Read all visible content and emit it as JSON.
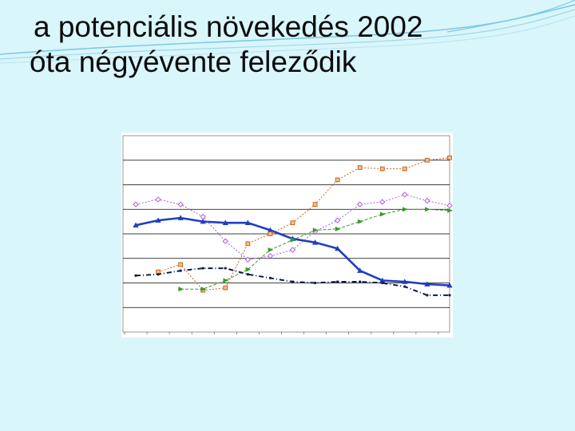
{
  "slide": {
    "title_line1": "a potenciális növekedés 2002",
    "title_line2": "óta  négyévente  feleződik"
  },
  "colors": {
    "background": "#d9f6fb",
    "decor_lines": "#7fc9e3",
    "plot_bg": "#ffffff",
    "grid": "#000000"
  },
  "chart_data": {
    "type": "line",
    "title": "",
    "xlabel": "",
    "ylabel": "",
    "x": [
      1,
      2,
      3,
      4,
      5,
      6,
      7,
      8,
      9,
      10,
      11,
      12,
      13,
      14,
      15
    ],
    "ylim": [
      0,
      8
    ],
    "grid": true,
    "legend": "none",
    "series": [
      {
        "color": "#1f3fbf",
        "marker": "triangle",
        "dash": "solid",
        "width": 2.6,
        "values": [
          4.35,
          4.55,
          4.65,
          4.5,
          4.45,
          4.45,
          4.15,
          3.8,
          3.65,
          3.4,
          2.5,
          2.1,
          2.05,
          1.95,
          1.9
        ]
      },
      {
        "color": "#c8641e",
        "marker": "square",
        "dash": "2 2",
        "width": 1,
        "values": [
          null,
          2.45,
          2.75,
          1.7,
          1.8,
          3.6,
          4.0,
          4.45,
          5.2,
          6.2,
          6.7,
          6.65,
          6.65,
          7.0,
          7.1
        ]
      },
      {
        "color": "#b05ce0",
        "marker": "diamond",
        "dash": "2 2",
        "width": 1,
        "values": [
          5.2,
          5.4,
          5.2,
          4.7,
          3.7,
          2.95,
          3.1,
          3.35,
          4.1,
          4.55,
          5.2,
          5.3,
          5.6,
          5.35,
          5.15
        ]
      },
      {
        "color": "#3a9a2a",
        "marker": "triangle-right",
        "dash": "4 2",
        "width": 1,
        "values": [
          null,
          null,
          1.75,
          1.75,
          2.1,
          2.55,
          3.35,
          3.75,
          4.15,
          4.2,
          4.5,
          4.8,
          5.0,
          5.0,
          4.95
        ]
      },
      {
        "color": "#0a1a4a",
        "marker": "dot",
        "dash": "6 3 1 3",
        "width": 2,
        "values": [
          2.3,
          2.35,
          2.5,
          2.6,
          2.6,
          2.35,
          2.2,
          2.05,
          2.0,
          2.05,
          2.05,
          2.0,
          1.85,
          1.5,
          1.5
        ]
      }
    ]
  }
}
